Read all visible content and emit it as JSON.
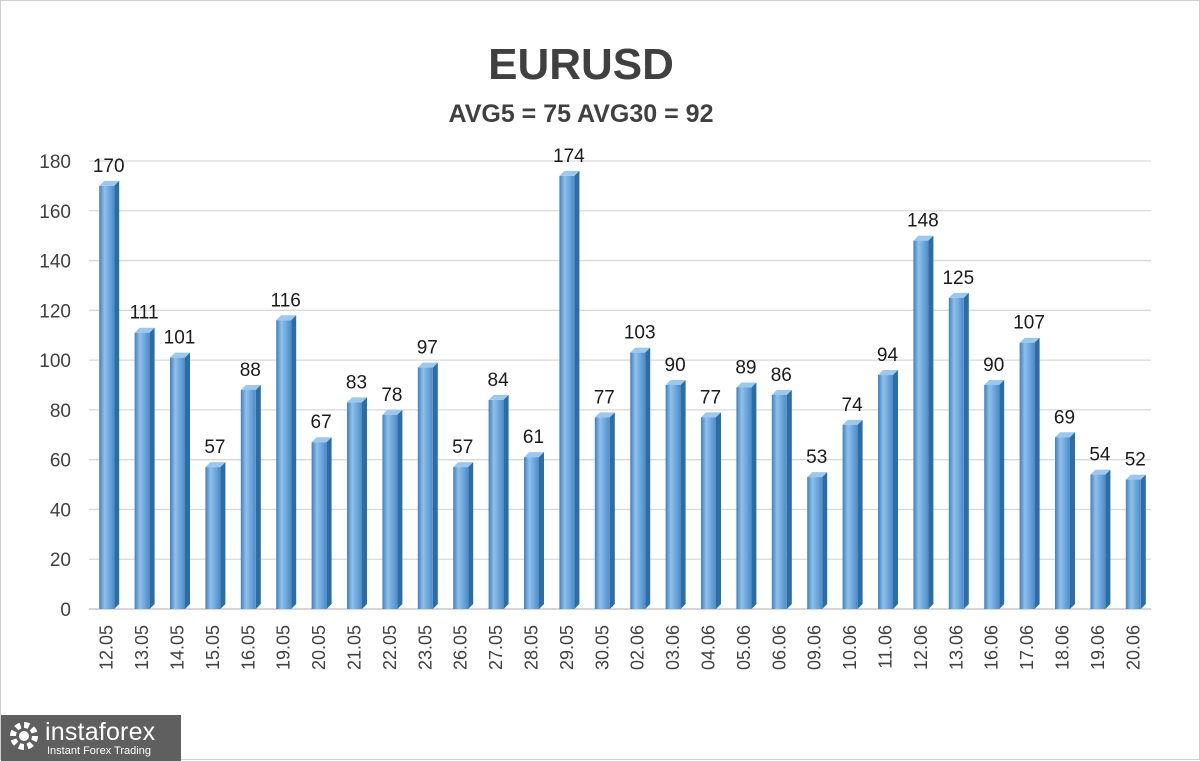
{
  "chart_data": {
    "type": "bar",
    "title": "EURUSD",
    "subtitle": "AVG5 = 75 AVG30 = 92",
    "xlabel": "",
    "ylabel": "",
    "ylim": [
      0,
      180
    ],
    "yticks": [
      0,
      20,
      40,
      60,
      80,
      100,
      120,
      140,
      160,
      180
    ],
    "grid": true,
    "legend": "none",
    "categories": [
      "12.05",
      "13.05",
      "14.05",
      "15.05",
      "16.05",
      "19.05",
      "20.05",
      "21.05",
      "22.05",
      "23.05",
      "26.05",
      "27.05",
      "28.05",
      "29.05",
      "30.05",
      "02.06",
      "03.06",
      "04.06",
      "05.06",
      "06.06",
      "09.06",
      "10.06",
      "11.06",
      "12.06",
      "13.06",
      "16.06",
      "17.06",
      "18.06",
      "19.06",
      "20.06"
    ],
    "values": [
      170,
      111,
      101,
      57,
      88,
      116,
      67,
      83,
      78,
      97,
      57,
      84,
      61,
      174,
      77,
      103,
      90,
      77,
      89,
      86,
      53,
      74,
      94,
      148,
      125,
      90,
      107,
      69,
      54,
      52
    ],
    "bar_color": "#5b9bd5",
    "bar_dark_color": "#2e6ca4"
  },
  "watermark": {
    "brand": "instaforex",
    "tagline": "Instant Forex Trading",
    "icon": "gear-icon",
    "background": "#5f5f5f"
  }
}
